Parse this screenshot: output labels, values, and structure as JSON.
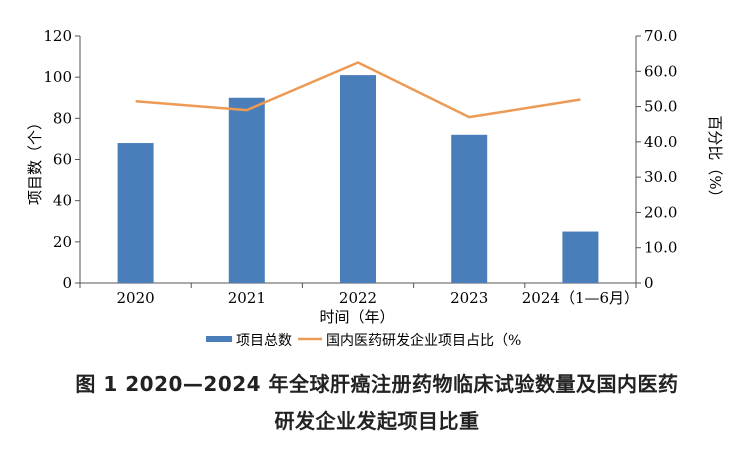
{
  "chart_data": {
    "type": "bar+line",
    "categories": [
      "2020",
      "2021",
      "2022",
      "2023",
      "2024（1—6月）"
    ],
    "series": [
      {
        "name": "项目总数",
        "kind": "bar",
        "axis": "left",
        "color": "#4a7ebb",
        "values": [
          68,
          90,
          101,
          72,
          25
        ]
      },
      {
        "name": "国内医药研发企业项目占比（%",
        "kind": "line",
        "axis": "right",
        "color": "#ed9a54",
        "values": [
          51.5,
          49.0,
          62.5,
          47.0,
          52.0
        ]
      }
    ],
    "xlabel": "时间（年）",
    "ylabel_left": "项目数（个）",
    "ylabel_right": "百分比（%）",
    "ylim_left": [
      0,
      120
    ],
    "ylim_right": [
      0,
      70
    ],
    "yticks_left": [
      "0",
      "20",
      "40",
      "60",
      "80",
      "100",
      "120"
    ],
    "yticks_right": [
      "0",
      "10.0",
      "20.0",
      "30.0",
      "40.0",
      "50.0",
      "60.0",
      "70.0"
    ],
    "legend_position": "bottom"
  },
  "caption": {
    "line1": "图 1  2020—2024 年全球肝癌注册药物临床试验数量及国内医药",
    "line2": "研发企业发起项目比重"
  }
}
